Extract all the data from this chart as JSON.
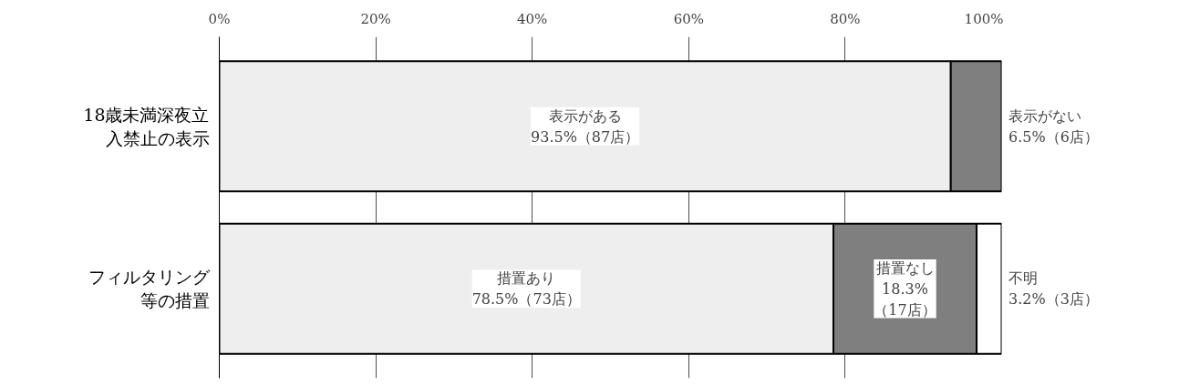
{
  "chart_data": {
    "type": "bar",
    "orientation": "horizontal",
    "stacked": true,
    "categories": [
      "18歳未満深夜立入禁止の表示",
      "フィルタリング等の措置"
    ],
    "series": [
      {
        "color": "#eeeeee",
        "values": [
          93.5,
          78.5
        ],
        "value_labels": [
          "表示がある\n93.5%（87店）",
          "措置あり\n78.5%（73店）"
        ]
      },
      {
        "color": "#7f7f7f",
        "values": [
          6.5,
          18.3
        ],
        "value_labels": [
          "表示がない\n6.5%（6店）",
          "措置なし\n18.3%\n（17店）"
        ]
      },
      {
        "color": "#ffffff",
        "values": [
          null,
          3.2
        ],
        "value_labels": [
          null,
          "不明\n3.2%（3店）"
        ]
      }
    ],
    "xlim": [
      0,
      100
    ],
    "xticks": [
      {
        "value": 0,
        "label": "0%"
      },
      {
        "value": 20,
        "label": "20%"
      },
      {
        "value": 40,
        "label": "40%"
      },
      {
        "value": 60,
        "label": "60%"
      },
      {
        "value": 80,
        "label": "80%"
      },
      {
        "value": 100,
        "label": "100%"
      }
    ],
    "grid": "x"
  }
}
